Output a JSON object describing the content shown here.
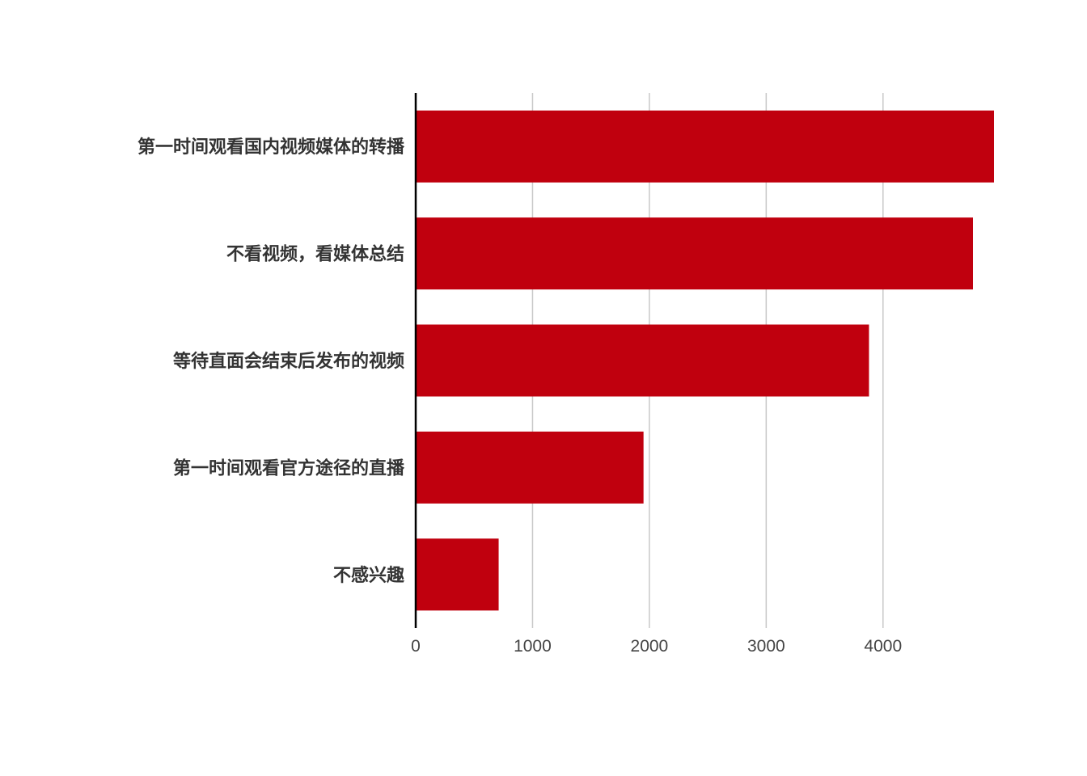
{
  "chart_data": {
    "type": "bar",
    "orientation": "horizontal",
    "categories": [
      "第一时间观看国内视频媒体的转播",
      "不看视频，看媒体总结",
      "等待直面会结束后发布的视频",
      "第一时间观看官方途径的直播",
      "不感兴趣"
    ],
    "values": [
      4950,
      4770,
      3880,
      1950,
      710
    ],
    "xlim": [
      0,
      4950
    ],
    "xticks": [
      0,
      1000,
      2000,
      3000,
      4000
    ],
    "title": "",
    "xlabel": "",
    "ylabel": "",
    "grid": "vertical",
    "legend": "none",
    "bar_color": "#c0000e"
  }
}
